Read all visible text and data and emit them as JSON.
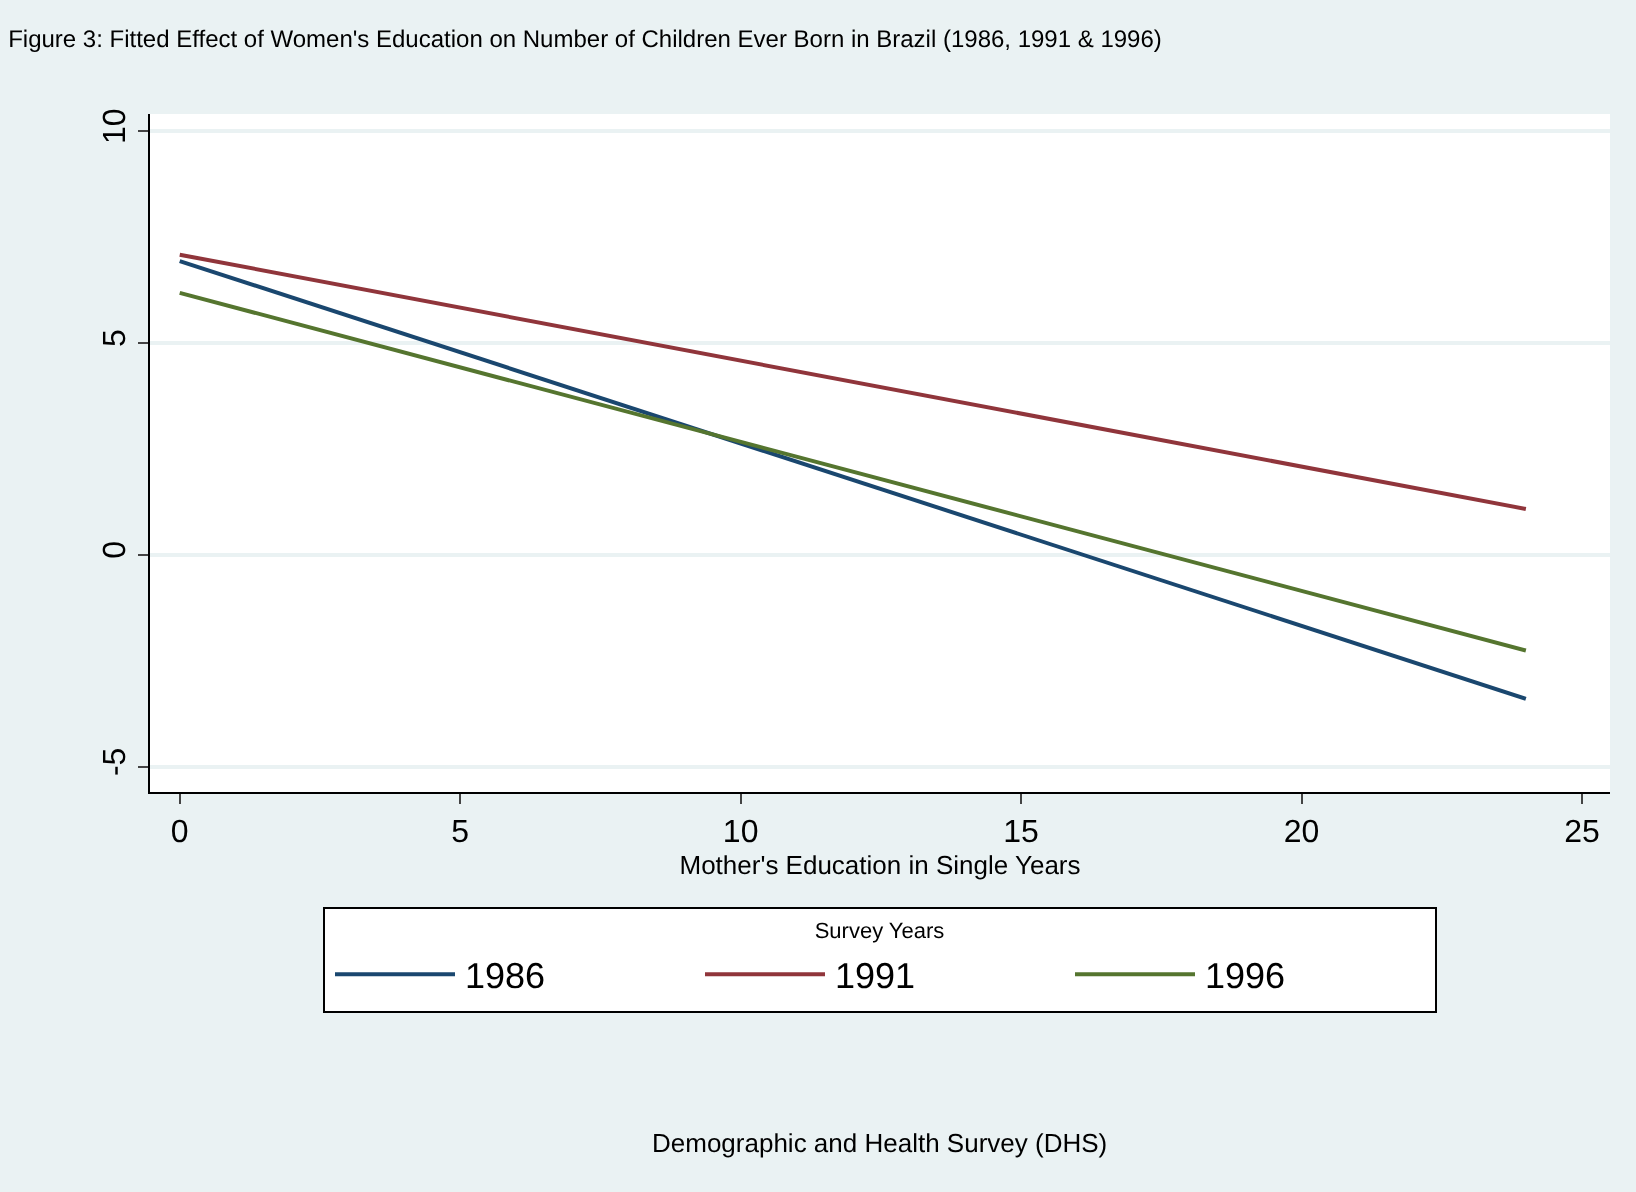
{
  "chart_data": {
    "type": "line",
    "title": "Figure 3: Fitted Effect of Women's Education on Number of Children Ever Born in Brazil (1986, 1991 & 1996)",
    "xlabel": "Mother's Education in Single Years",
    "legend_title": "Survey Years",
    "x": [
      0,
      24
    ],
    "series": [
      {
        "name": "1986",
        "color": "#1a476f",
        "values": [
          6.93,
          -3.4
        ]
      },
      {
        "name": "1991",
        "color": "#90353b",
        "values": [
          7.08,
          1.08
        ]
      },
      {
        "name": "1996",
        "color": "#55752f",
        "values": [
          6.18,
          -2.26
        ]
      }
    ],
    "xlim": [
      -0.53,
      25.5
    ],
    "ylim": [
      -5.6,
      10.4
    ],
    "xticks": [
      0,
      5,
      10,
      15,
      20,
      25
    ],
    "yticks": [
      -5,
      0,
      5,
      10
    ],
    "grid": "y",
    "legend": "bottom",
    "marker": "none",
    "line_style": "solid",
    "annotations": [
      "Demographic and Health Survey (DHS)"
    ]
  }
}
